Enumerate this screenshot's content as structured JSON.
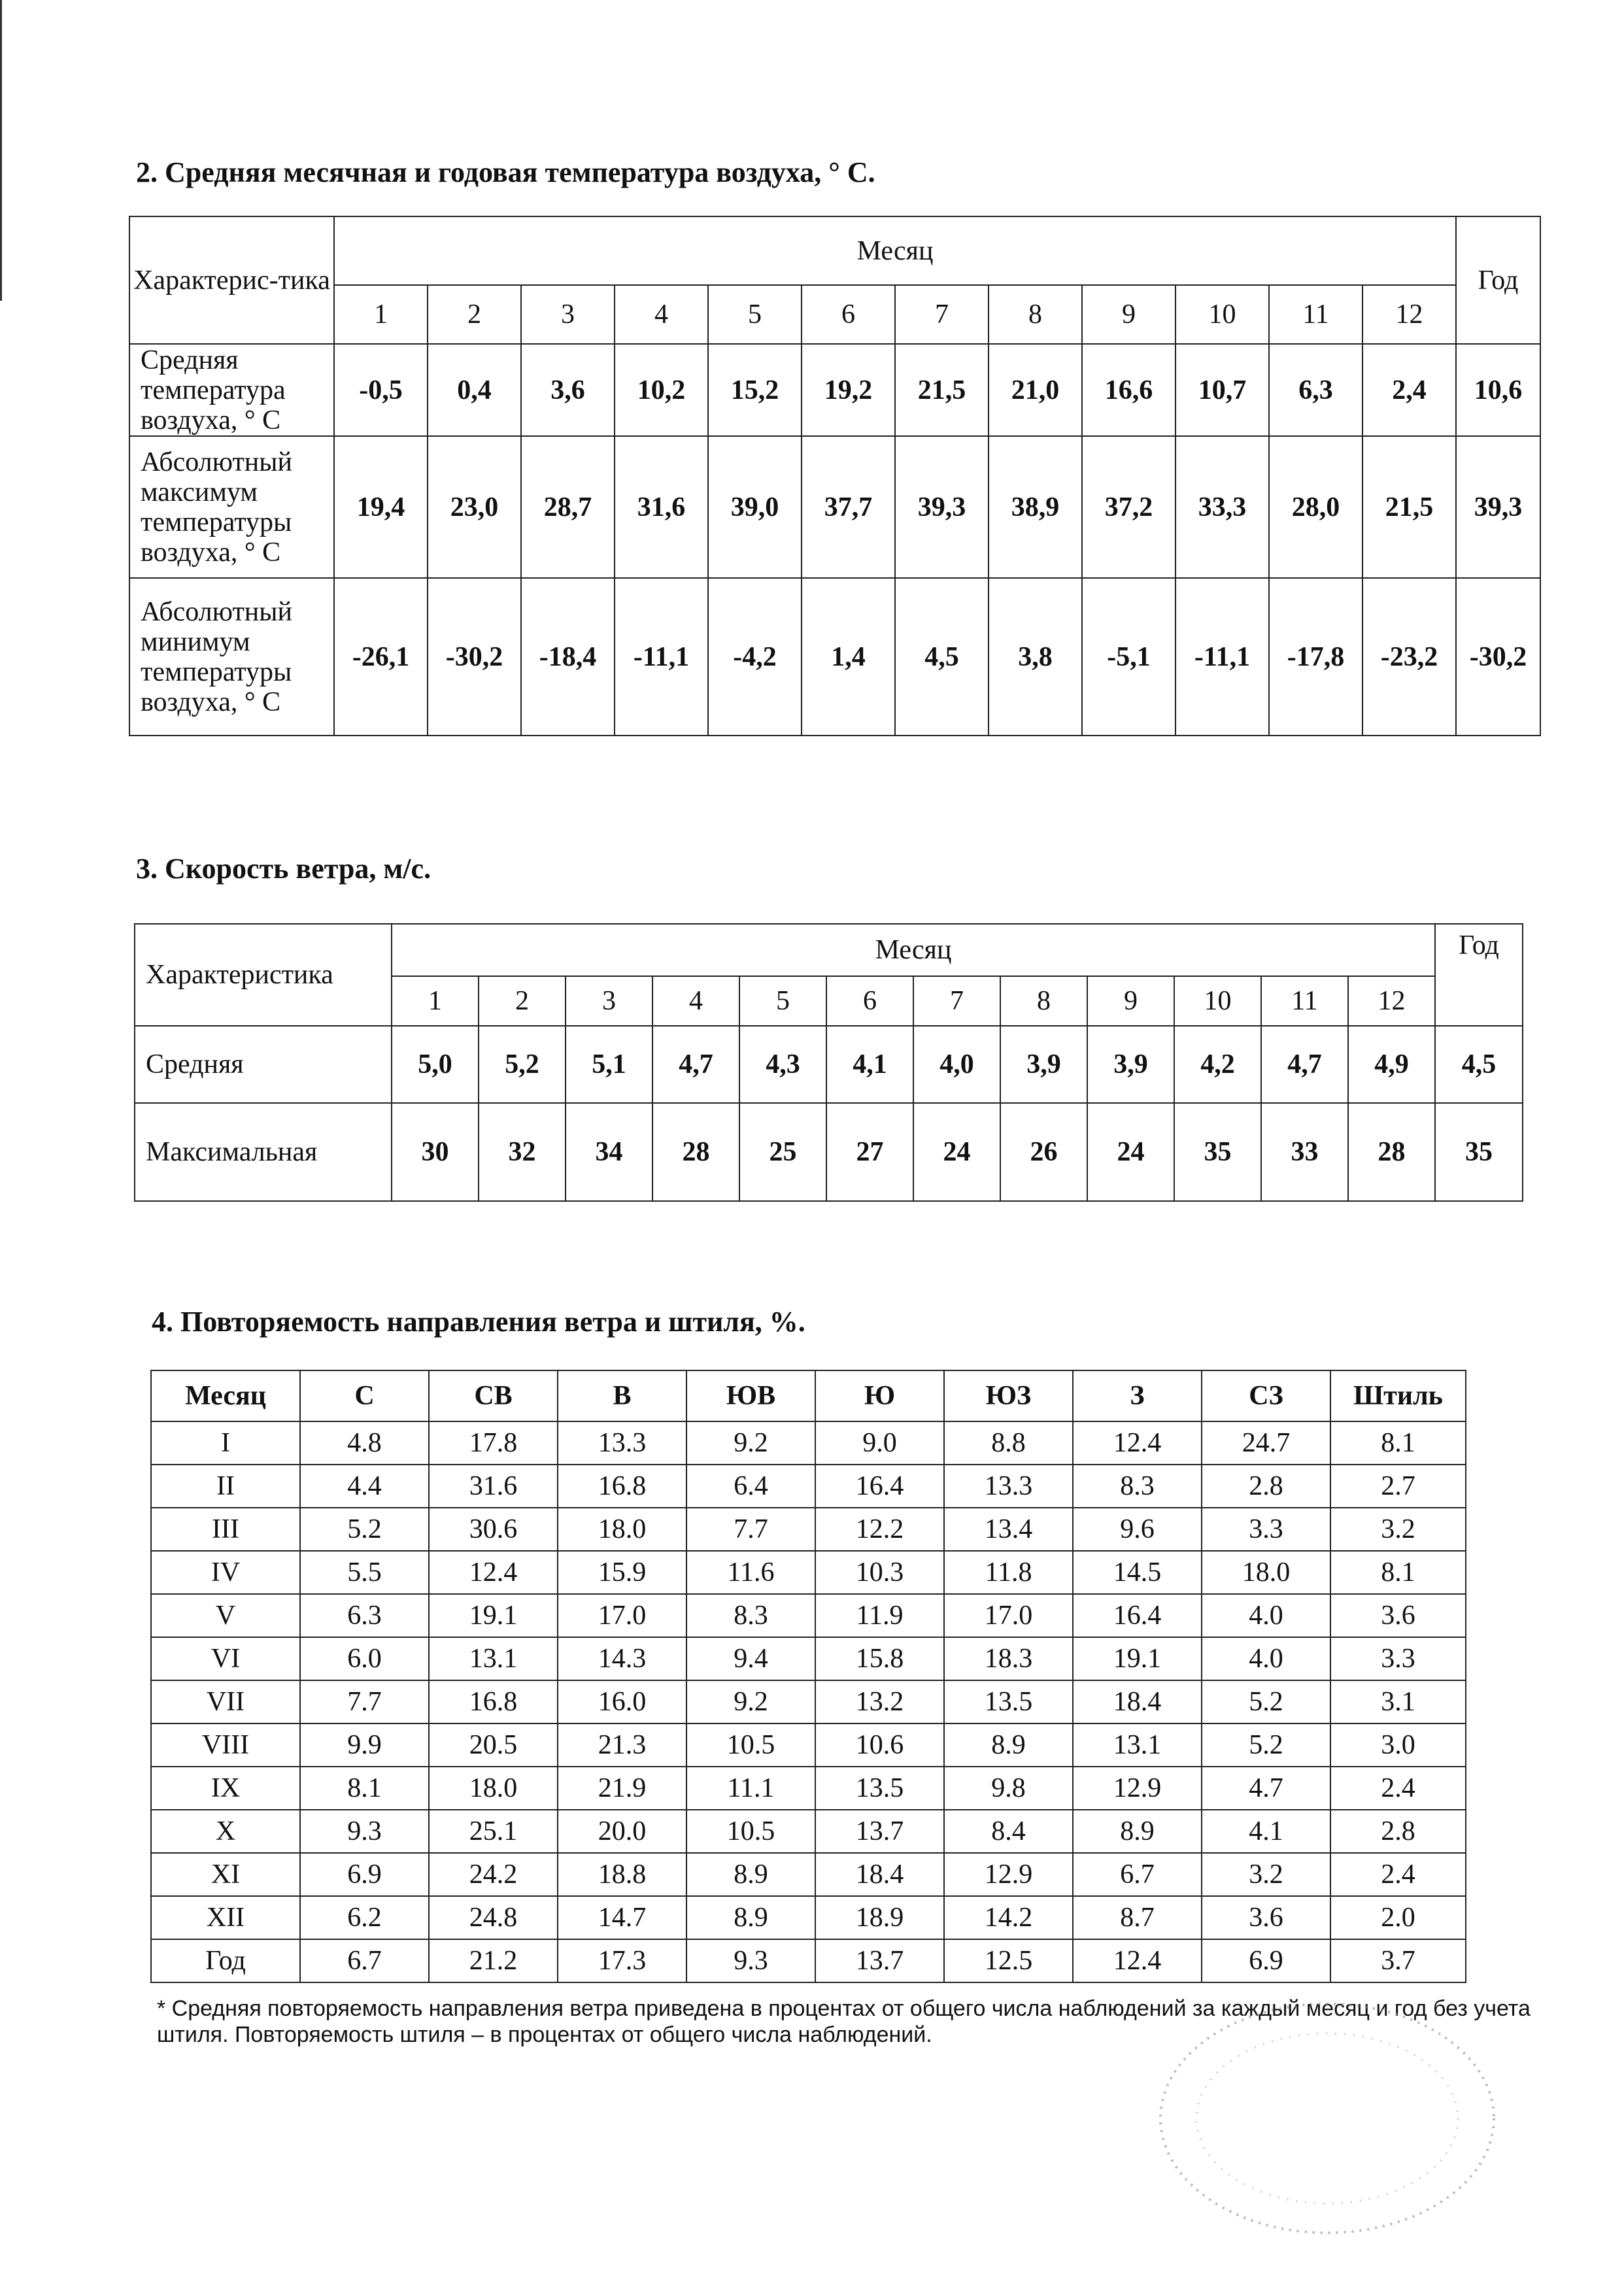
{
  "section2": {
    "title": "2. Средняя месячная и годовая температура воздуха, ° С.",
    "header_char": "Характерис-тика",
    "header_month": "Месяц",
    "header_year": "Год",
    "months": [
      "1",
      "2",
      "3",
      "4",
      "5",
      "6",
      "7",
      "8",
      "9",
      "10",
      "11",
      "12"
    ],
    "rows": [
      {
        "label": "Средняя температура воздуха, ° С",
        "values": [
          "-0,5",
          "0,4",
          "3,6",
          "10,2",
          "15,2",
          "19,2",
          "21,5",
          "21,0",
          "16,6",
          "10,7",
          "6,3",
          "2,4"
        ],
        "year": "10,6"
      },
      {
        "label": "Абсолютный максимум температуры воздуха, ° С",
        "values": [
          "19,4",
          "23,0",
          "28,7",
          "31,6",
          "39,0",
          "37,7",
          "39,3",
          "38,9",
          "37,2",
          "33,3",
          "28,0",
          "21,5"
        ],
        "year": "39,3"
      },
      {
        "label": "Абсолютный минимум температуры воздуха, ° С",
        "values": [
          "-26,1",
          "-30,2",
          "-18,4",
          "-11,1",
          "-4,2",
          "1,4",
          "4,5",
          "3,8",
          "-5,1",
          "-11,1",
          "-17,8",
          "-23,2"
        ],
        "year": "-30,2"
      }
    ]
  },
  "section3": {
    "title": "3. Скорость ветра, м/с.",
    "header_char": "Характеристика",
    "header_month": "Месяц",
    "header_year": "Год",
    "months": [
      "1",
      "2",
      "3",
      "4",
      "5",
      "6",
      "7",
      "8",
      "9",
      "10",
      "11",
      "12"
    ],
    "rows": [
      {
        "label": "Средняя",
        "values": [
          "5,0",
          "5,2",
          "5,1",
          "4,7",
          "4,3",
          "4,1",
          "4,0",
          "3,9",
          "3,9",
          "4,2",
          "4,7",
          "4,9"
        ],
        "year": "4,5"
      },
      {
        "label": "Максимальная",
        "values": [
          "30",
          "32",
          "34",
          "28",
          "25",
          "27",
          "24",
          "26",
          "24",
          "35",
          "33",
          "28"
        ],
        "year": "35"
      }
    ]
  },
  "section4": {
    "title": "4. Повторяемость направления ветра и штиля, %.",
    "headers": [
      "Месяц",
      "С",
      "СВ",
      "В",
      "ЮВ",
      "Ю",
      "ЮЗ",
      "З",
      "СЗ",
      "Штиль"
    ],
    "rows": [
      [
        "I",
        "4.8",
        "17.8",
        "13.3",
        "9.2",
        "9.0",
        "8.8",
        "12.4",
        "24.7",
        "8.1"
      ],
      [
        "II",
        "4.4",
        "31.6",
        "16.8",
        "6.4",
        "16.4",
        "13.3",
        "8.3",
        "2.8",
        "2.7"
      ],
      [
        "III",
        "5.2",
        "30.6",
        "18.0",
        "7.7",
        "12.2",
        "13.4",
        "9.6",
        "3.3",
        "3.2"
      ],
      [
        "IV",
        "5.5",
        "12.4",
        "15.9",
        "11.6",
        "10.3",
        "11.8",
        "14.5",
        "18.0",
        "8.1"
      ],
      [
        "V",
        "6.3",
        "19.1",
        "17.0",
        "8.3",
        "11.9",
        "17.0",
        "16.4",
        "4.0",
        "3.6"
      ],
      [
        "VI",
        "6.0",
        "13.1",
        "14.3",
        "9.4",
        "15.8",
        "18.3",
        "19.1",
        "4.0",
        "3.3"
      ],
      [
        "VII",
        "7.7",
        "16.8",
        "16.0",
        "9.2",
        "13.2",
        "13.5",
        "18.4",
        "5.2",
        "3.1"
      ],
      [
        "VIII",
        "9.9",
        "20.5",
        "21.3",
        "10.5",
        "10.6",
        "8.9",
        "13.1",
        "5.2",
        "3.0"
      ],
      [
        "IX",
        "8.1",
        "18.0",
        "21.9",
        "11.1",
        "13.5",
        "9.8",
        "12.9",
        "4.7",
        "2.4"
      ],
      [
        "X",
        "9.3",
        "25.1",
        "20.0",
        "10.5",
        "13.7",
        "8.4",
        "8.9",
        "4.1",
        "2.8"
      ],
      [
        "XI",
        "6.9",
        "24.2",
        "18.8",
        "8.9",
        "18.4",
        "12.9",
        "6.7",
        "3.2",
        "2.4"
      ],
      [
        "XII",
        "6.2",
        "24.8",
        "14.7",
        "8.9",
        "18.9",
        "14.2",
        "8.7",
        "3.6",
        "2.0"
      ],
      [
        "Год",
        "6.7",
        "21.2",
        "17.3",
        "9.3",
        "13.7",
        "12.5",
        "12.4",
        "6.9",
        "3.7"
      ]
    ],
    "footnote": "* Средняя повторяемость направления ветра приведена в процентах от общего  числа наблюдений за каждый месяц и год  без учета штиля. Повторяемость штиля – в процентах от общего числа наблюдений."
  }
}
